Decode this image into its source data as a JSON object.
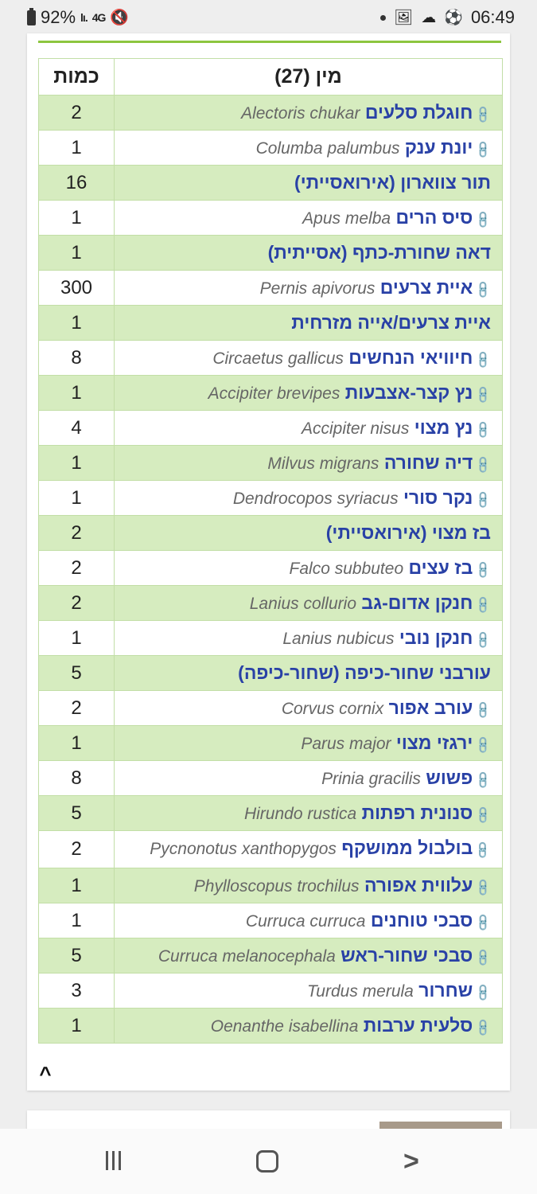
{
  "status_bar": {
    "battery": "92%",
    "network": "4G",
    "time": "06:49"
  },
  "table": {
    "col_species": "מין (27)",
    "col_quantity": "כמות",
    "rows": [
      {
        "heb": "חוגלת סלעים",
        "lat": "Alectoris chukar",
        "qty": "2",
        "link": true
      },
      {
        "heb": "יונת ענק",
        "lat": "Columba palumbus",
        "qty": "1",
        "link": true
      },
      {
        "heb": "תור צווארון (אירואסייתי)",
        "lat": "",
        "qty": "16",
        "link": false
      },
      {
        "heb": "סיס הרים",
        "lat": "Apus melba",
        "qty": "1",
        "link": true
      },
      {
        "heb": "דאה שחורת-כתף (אסייתית)",
        "lat": "",
        "qty": "1",
        "link": false
      },
      {
        "heb": "איית צרעים",
        "lat": "Pernis apivorus",
        "qty": "300",
        "link": true
      },
      {
        "heb": "איית צרעים/אייה מזרחית",
        "lat": "",
        "qty": "1",
        "link": false
      },
      {
        "heb": "חיוויאי הנחשים",
        "lat": "Circaetus gallicus",
        "qty": "8",
        "link": true
      },
      {
        "heb": "נץ קצר-אצבעות",
        "lat": "Accipiter brevipes",
        "qty": "1",
        "link": true
      },
      {
        "heb": "נץ מצוי",
        "lat": "Accipiter nisus",
        "qty": "4",
        "link": true
      },
      {
        "heb": "דיה שחורה",
        "lat": "Milvus migrans",
        "qty": "1",
        "link": true
      },
      {
        "heb": "נקר סורי",
        "lat": "Dendrocopos syriacus",
        "qty": "1",
        "link": true
      },
      {
        "heb": "בז מצוי (אירואסייתי)",
        "lat": "",
        "qty": "2",
        "link": false
      },
      {
        "heb": "בז עצים",
        "lat": "Falco subbuteo",
        "qty": "2",
        "link": true
      },
      {
        "heb": "חנקן אדום-גב",
        "lat": "Lanius collurio",
        "qty": "2",
        "link": true
      },
      {
        "heb": "חנקן נובי",
        "lat": "Lanius nubicus",
        "qty": "1",
        "link": true
      },
      {
        "heb": "עורבני שחור-כיפה (שחור-כיפה)",
        "lat": "",
        "qty": "5",
        "link": false
      },
      {
        "heb": "עורב אפור",
        "lat": "Corvus cornix",
        "qty": "2",
        "link": true
      },
      {
        "heb": "ירגזי מצוי",
        "lat": "Parus major",
        "qty": "1",
        "link": true
      },
      {
        "heb": "פשוש",
        "lat": "Prinia gracilis",
        "qty": "8",
        "link": true
      },
      {
        "heb": "סנונית רפתות",
        "lat": "Hirundo rustica",
        "qty": "5",
        "link": true
      },
      {
        "heb": "בולבול ממושקף",
        "lat": "Pycnonotus xanthopygos",
        "qty": "2",
        "link": true
      },
      {
        "heb": "עלווית אפורה",
        "lat": "Phylloscopus trochilus",
        "qty": "1",
        "link": true
      },
      {
        "heb": "סבכי טוחנים",
        "lat": "Curruca curruca",
        "qty": "1",
        "link": true
      },
      {
        "heb": "סבכי שחור-ראש",
        "lat": "Curruca melanocephala",
        "qty": "5",
        "link": true
      },
      {
        "heb": "שחרור",
        "lat": "Turdus merula",
        "qty": "3",
        "link": true
      },
      {
        "heb": "סלעית ערבות",
        "lat": "Oenanthe isabellina",
        "qty": "1",
        "link": true
      }
    ]
  },
  "colors": {
    "accent_green": "#8dc63f",
    "row_green": "#d6ecbf",
    "link_blue": "#2941a6"
  }
}
